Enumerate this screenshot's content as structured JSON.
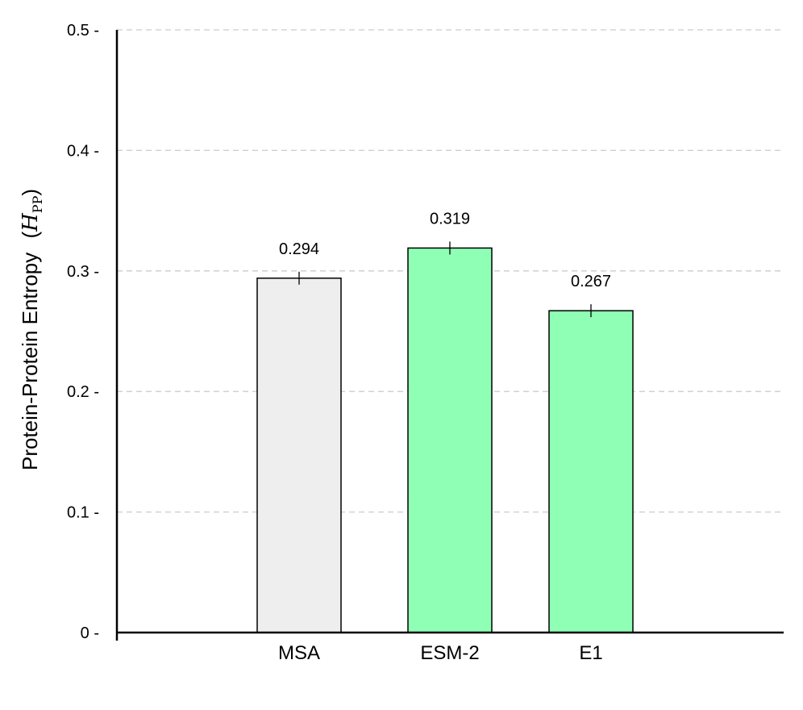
{
  "chart_data": {
    "type": "bar",
    "categories": [
      "MSA",
      "ESM-2",
      "E1"
    ],
    "values": [
      0.294,
      0.319,
      0.267
    ],
    "value_labels": [
      "0.294",
      "0.319",
      "0.267"
    ],
    "bar_colors": [
      "#eeeeee",
      "#8effb4",
      "#8effb4"
    ],
    "edge_color": "#000000",
    "title": "",
    "xlabel": "",
    "ylabel": {
      "prefix": "Protein-Protein Entropy",
      "symbol": "H",
      "subscript": "PP"
    },
    "ylim": [
      0,
      0.5
    ],
    "yticks": [
      0,
      0.1,
      0.2,
      0.3,
      0.4,
      0.5
    ],
    "ytick_labels": [
      "0",
      "0.1",
      "0.2",
      "0.3",
      "0.4",
      "0.5"
    ],
    "grid": "horizontal-dashed",
    "grid_color": "#cccccc"
  }
}
